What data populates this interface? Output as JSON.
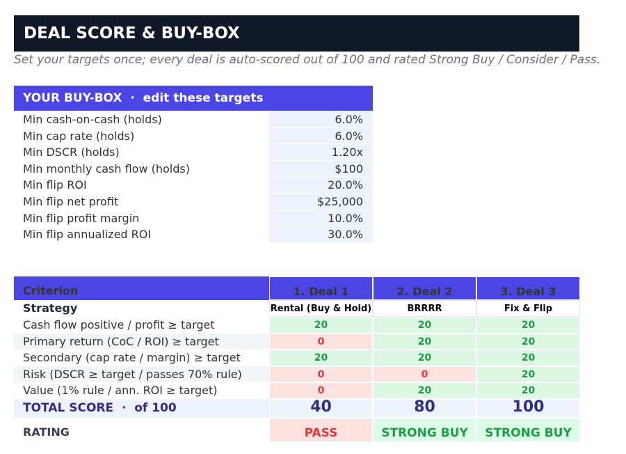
{
  "header": {
    "title": "DEAL SCORE & BUY-BOX",
    "subtitle": "Set your targets once; every deal is auto-scored out of 100 and rated Strong Buy / Consider / Pass."
  },
  "buybox": {
    "title": "YOUR BUY-BOX  ·  edit these targets",
    "rows": [
      [
        "Min cash-on-cash (holds)",
        "6.0%"
      ],
      [
        "Min cap rate (holds)",
        "6.0%"
      ],
      [
        "Min DSCR (holds)",
        "1.20x"
      ],
      [
        "Min monthly cash flow (holds)",
        "$100"
      ],
      [
        "Min flip ROI",
        "20.0%"
      ],
      [
        "Min flip net profit",
        "$25,000"
      ],
      [
        "Min flip profit margin",
        "10.0%"
      ],
      [
        "Min flip annualized ROI",
        "30.0%"
      ]
    ]
  },
  "score": {
    "header": [
      "Criterion",
      "1. Deal 1",
      "2. Deal 2",
      "3. Deal 3"
    ],
    "strategy": [
      "Strategy",
      "Rental (Buy & Hold)",
      "BRRRR",
      "Fix & Flip"
    ],
    "rows": [
      [
        "Cash flow positive / profit ≥ target",
        20,
        20,
        20
      ],
      [
        "Primary return (CoC / ROI) ≥ target",
        0,
        20,
        20
      ],
      [
        "Secondary (cap rate / margin) ≥ target",
        20,
        20,
        20
      ],
      [
        "Risk (DSCR ≥ target / passes 70% rule)",
        0,
        0,
        20
      ],
      [
        "Value (1% rule / ann. ROI ≥ target)",
        0,
        20,
        20
      ]
    ],
    "total": [
      "TOTAL SCORE  ·  of 100",
      40,
      80,
      100
    ],
    "rating": [
      "RATING",
      "PASS",
      "STRONG BUY",
      "STRONG BUY"
    ]
  }
}
